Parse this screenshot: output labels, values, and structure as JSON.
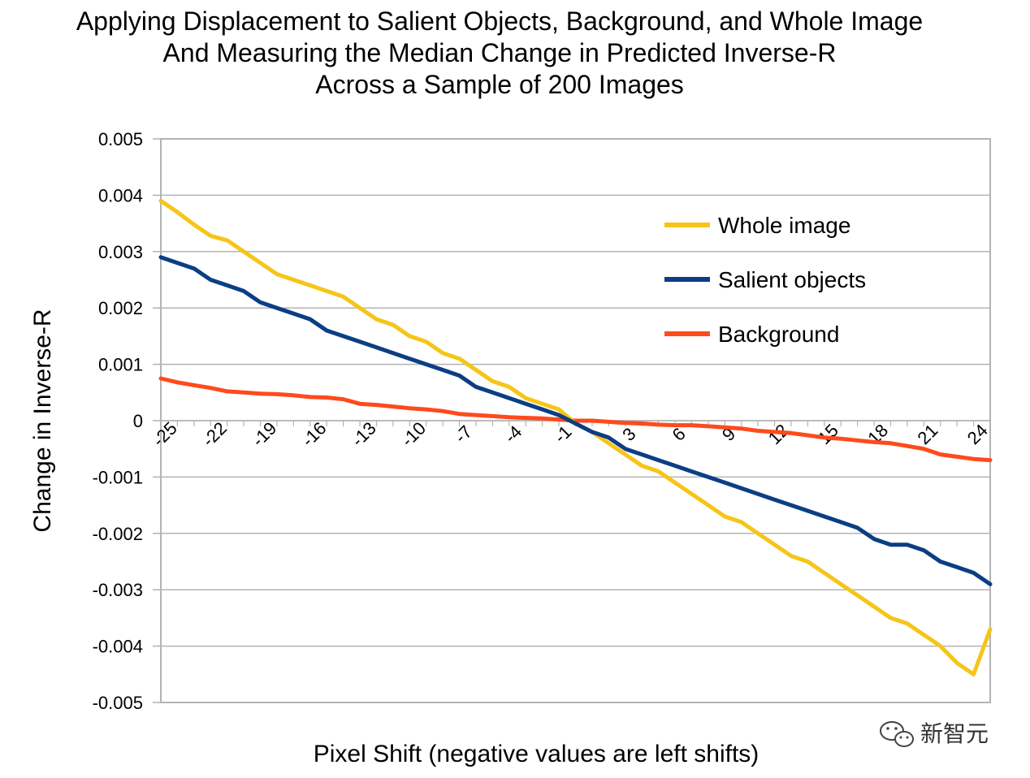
{
  "chart_data": {
    "type": "line",
    "title_lines": [
      "Applying Displacement to Salient Objects, Background, and Whole Image",
      "And Measuring the Median Change in Predicted Inverse-R",
      "Across a Sample of 200 Images"
    ],
    "xlabel": "Pixel Shift (negative values are left shifts)",
    "ylabel": "Change in Inverse-R",
    "xlim": [
      -25,
      25
    ],
    "ylim": [
      -0.005,
      0.005
    ],
    "x_ticks": [
      -25,
      -22,
      -19,
      -16,
      -13,
      -10,
      -7,
      -4,
      -1,
      3,
      6,
      9,
      12,
      15,
      18,
      21,
      24
    ],
    "y_ticks": [
      0.005,
      0.004,
      0.003,
      0.002,
      0.001,
      0,
      -0.001,
      -0.002,
      -0.003,
      -0.004,
      -0.005
    ],
    "y_tick_labels": [
      "0.005",
      "0.004",
      "0.003",
      "0.002",
      "0.001",
      "0",
      "-0.001",
      "-0.002",
      "-0.003",
      "-0.004",
      "-0.005"
    ],
    "grid": true,
    "legend_position": "upper-right",
    "series": [
      {
        "name": "Whole image",
        "color": "#F5C518",
        "x": [
          -25,
          -24,
          -23,
          -22,
          -21,
          -20,
          -19,
          -18,
          -17,
          -16,
          -15,
          -14,
          -13,
          -12,
          -11,
          -10,
          -9,
          -8,
          -7,
          -6,
          -5,
          -4,
          -3,
          -2,
          -1,
          0,
          1,
          2,
          3,
          4,
          5,
          6,
          7,
          8,
          9,
          10,
          11,
          12,
          13,
          14,
          15,
          16,
          17,
          18,
          19,
          20,
          21,
          22,
          23,
          24,
          25
        ],
        "values": [
          0.0039,
          0.0037,
          0.00348,
          0.00328,
          0.0032,
          0.003,
          0.0028,
          0.0026,
          0.0025,
          0.0024,
          0.0023,
          0.0022,
          0.002,
          0.0018,
          0.0017,
          0.0015,
          0.0014,
          0.0012,
          0.0011,
          0.0009,
          0.0007,
          0.0006,
          0.0004,
          0.0003,
          0.0002,
          -5e-05,
          -0.0002,
          -0.0004,
          -0.0006,
          -0.0008,
          -0.0009,
          -0.0011,
          -0.0013,
          -0.0015,
          -0.0017,
          -0.0018,
          -0.002,
          -0.0022,
          -0.0024,
          -0.0025,
          -0.0027,
          -0.0029,
          -0.0031,
          -0.0033,
          -0.0035,
          -0.0036,
          -0.0038,
          -0.004,
          -0.0043,
          -0.0045,
          -0.0037
        ]
      },
      {
        "name": "Salient objects",
        "color": "#0B3E84",
        "x": [
          -25,
          -24,
          -23,
          -22,
          -21,
          -20,
          -19,
          -18,
          -17,
          -16,
          -15,
          -14,
          -13,
          -12,
          -11,
          -10,
          -9,
          -8,
          -7,
          -6,
          -5,
          -4,
          -3,
          -2,
          -1,
          0,
          1,
          2,
          3,
          4,
          5,
          6,
          7,
          8,
          9,
          10,
          11,
          12,
          13,
          14,
          15,
          16,
          17,
          18,
          19,
          20,
          21,
          22,
          23,
          24,
          25
        ],
        "values": [
          0.0029,
          0.0028,
          0.0027,
          0.0025,
          0.0024,
          0.0023,
          0.0021,
          0.002,
          0.0019,
          0.0018,
          0.0016,
          0.0015,
          0.0014,
          0.0013,
          0.0012,
          0.0011,
          0.001,
          0.0009,
          0.0008,
          0.0006,
          0.0005,
          0.0004,
          0.0003,
          0.0002,
          0.0001,
          -5e-05,
          -0.0002,
          -0.0003,
          -0.0005,
          -0.0006,
          -0.0007,
          -0.0008,
          -0.0009,
          -0.001,
          -0.0011,
          -0.0012,
          -0.0013,
          -0.0014,
          -0.0015,
          -0.0016,
          -0.0017,
          -0.0018,
          -0.0019,
          -0.0021,
          -0.0022,
          -0.0022,
          -0.0023,
          -0.0025,
          -0.0026,
          -0.0027,
          -0.0029
        ]
      },
      {
        "name": "Background",
        "color": "#FF4A1C",
        "x": [
          -25,
          -24,
          -23,
          -22,
          -21,
          -20,
          -19,
          -18,
          -17,
          -16,
          -15,
          -14,
          -13,
          -12,
          -11,
          -10,
          -9,
          -8,
          -7,
          -6,
          -5,
          -4,
          -3,
          -2,
          -1,
          0,
          1,
          2,
          3,
          4,
          5,
          6,
          7,
          8,
          9,
          10,
          11,
          12,
          13,
          14,
          15,
          16,
          17,
          18,
          19,
          20,
          21,
          22,
          23,
          24,
          25
        ],
        "values": [
          0.00075,
          0.00068,
          0.00063,
          0.00058,
          0.00052,
          0.0005,
          0.00048,
          0.00047,
          0.00045,
          0.00042,
          0.00041,
          0.00038,
          0.0003,
          0.00028,
          0.00025,
          0.00022,
          0.0002,
          0.00017,
          0.00012,
          0.0001,
          8e-05,
          6e-05,
          5e-05,
          4e-05,
          2e-05,
          0,
          0,
          -2e-05,
          -4e-05,
          -5e-05,
          -7e-05,
          -8e-05,
          -8e-05,
          -0.0001,
          -0.00012,
          -0.00014,
          -0.00018,
          -0.0002,
          -0.00022,
          -0.00026,
          -0.0003,
          -0.00032,
          -0.00035,
          -0.00038,
          -0.0004,
          -0.00045,
          -0.0005,
          -0.0006,
          -0.00064,
          -0.00068,
          -0.0007
        ]
      }
    ]
  },
  "watermark": {
    "text": "新智元",
    "icon": "wechat-logo-icon"
  }
}
